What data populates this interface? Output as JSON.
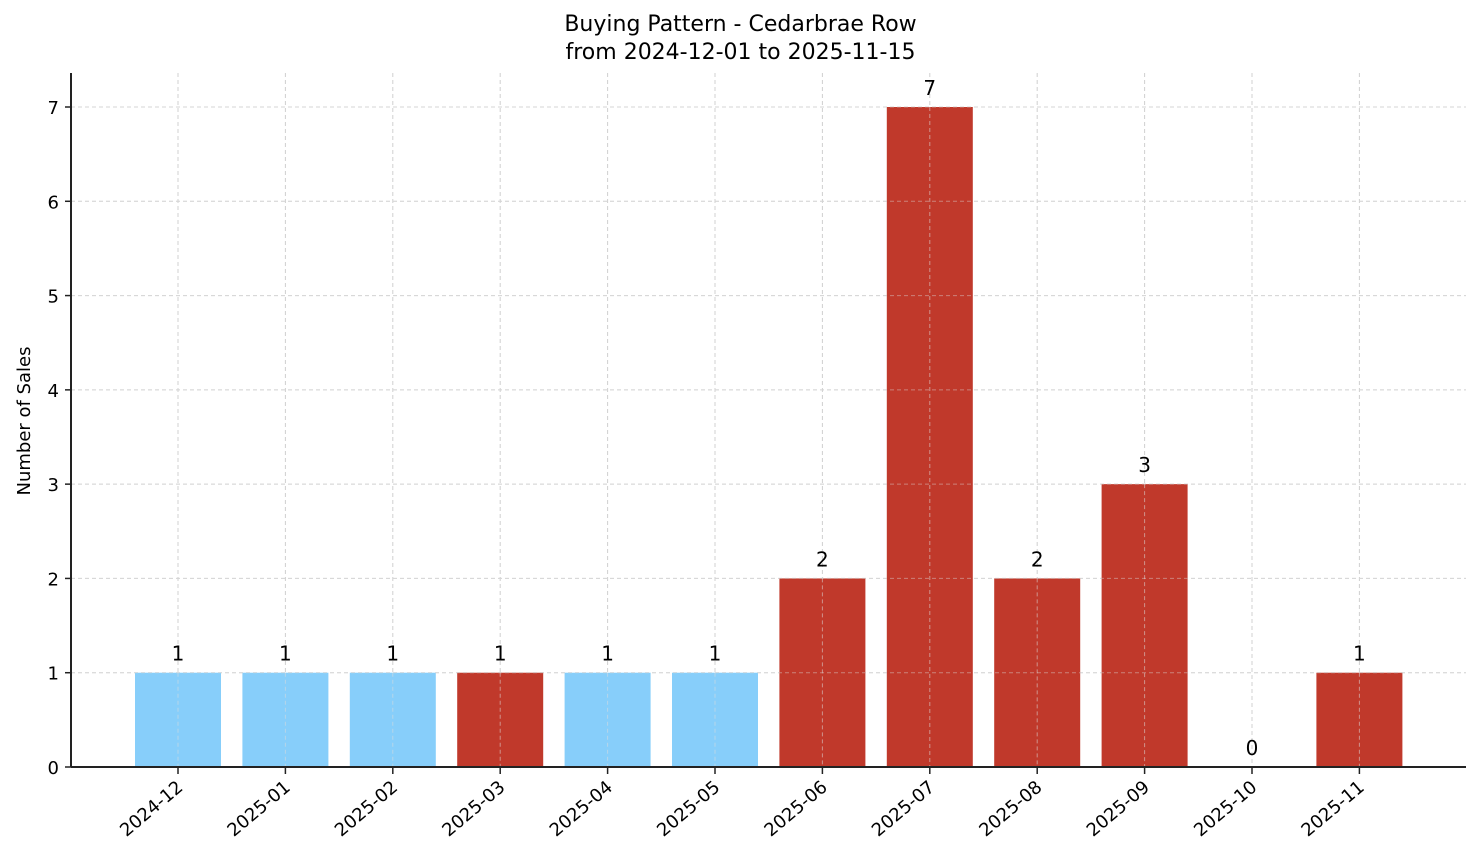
{
  "chart_data": {
    "type": "bar",
    "title": "Buying Pattern - Cedarbrae Row",
    "subtitle": "from 2024-12-01 to 2025-11-15",
    "xlabel": "",
    "ylabel": "Number of Sales",
    "categories": [
      "2024-12",
      "2025-01",
      "2025-02",
      "2025-03",
      "2025-04",
      "2025-05",
      "2025-06",
      "2025-07",
      "2025-08",
      "2025-09",
      "2025-10",
      "2025-11"
    ],
    "values": [
      1,
      1,
      1,
      1,
      1,
      1,
      2,
      7,
      2,
      3,
      0,
      1
    ],
    "bar_colors": [
      "#87CEFA",
      "#87CEFA",
      "#87CEFA",
      "#C0392B",
      "#87CEFA",
      "#87CEFA",
      "#C0392B",
      "#C0392B",
      "#C0392B",
      "#C0392B",
      "#C0392B",
      "#C0392B"
    ],
    "data_labels": [
      "1",
      "1",
      "1",
      "1",
      "1",
      "1",
      "2",
      "7",
      "2",
      "3",
      "0",
      "1"
    ],
    "yticks": [
      0,
      1,
      2,
      3,
      4,
      5,
      6,
      7
    ],
    "ylim": [
      0,
      7.35
    ],
    "grid": true,
    "legend": null
  },
  "colors": {
    "low": "#87CEFA",
    "high": "#C0392B",
    "grid": "#d0d0d0",
    "axis": "#222222"
  }
}
